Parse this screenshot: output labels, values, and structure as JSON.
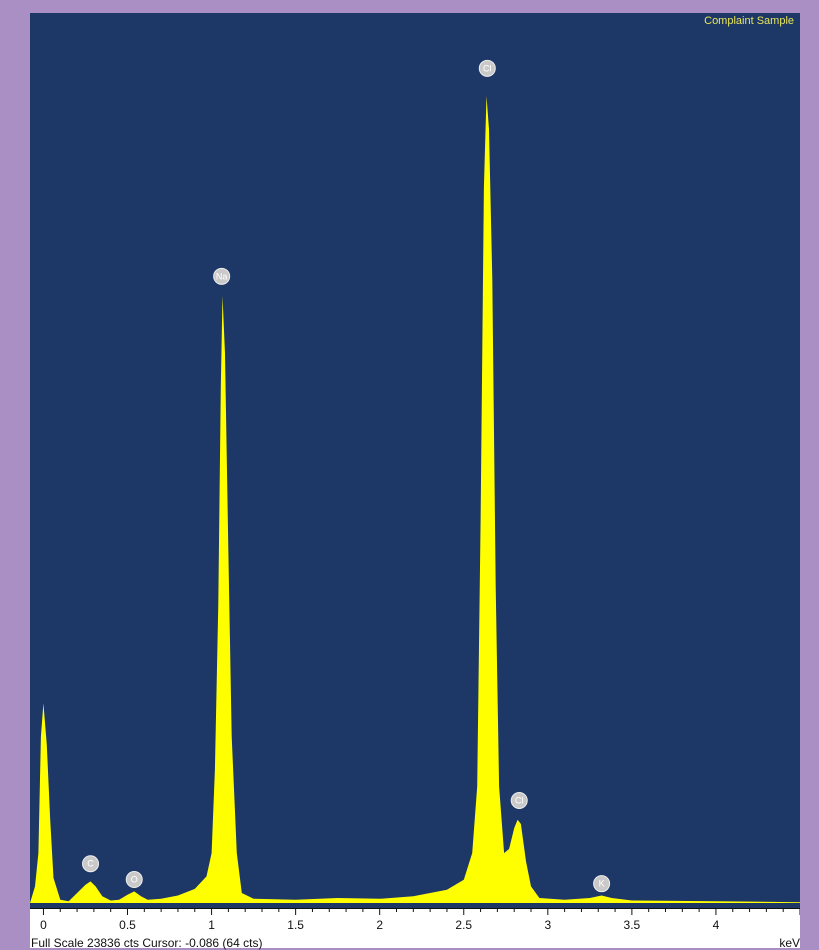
{
  "chart_data": {
    "type": "area",
    "title": "Complaint Sample",
    "xlabel": "keV",
    "xlim": [
      -0.08,
      4.5
    ],
    "ylim": [
      0,
      1
    ],
    "x_ticks": [
      0,
      0.5,
      1,
      1.5,
      2,
      2.5,
      3,
      3.5,
      4
    ],
    "x_tick_labels": [
      "0",
      "0.5",
      "1",
      "1.5",
      "2",
      "2.5",
      "3",
      "3.5",
      "4"
    ],
    "status_text": "Full Scale 23836 cts Cursor: -0.086  (64 cts)",
    "unit": "keV",
    "colors": {
      "background": "#1d3766",
      "spectrum": "#ffff00",
      "peak_marker": "#c9c9c9",
      "frame": "#a98fc4"
    },
    "peak_labels": [
      {
        "label": "C",
        "x": 0.28,
        "y": 0.034
      },
      {
        "label": "O",
        "x": 0.54,
        "y": 0.015
      },
      {
        "label": "Na",
        "x": 1.06,
        "y": 0.74
      },
      {
        "label": "Cl",
        "x": 2.64,
        "y": 0.99
      },
      {
        "label": "Cl",
        "x": 2.83,
        "y": 0.11
      },
      {
        "label": "K",
        "x": 3.32,
        "y": 0.01
      }
    ],
    "spectrum": [
      [
        -0.08,
        0.0
      ],
      [
        -0.05,
        0.02
      ],
      [
        -0.03,
        0.06
      ],
      [
        -0.015,
        0.2
      ],
      [
        0.0,
        0.24
      ],
      [
        0.02,
        0.19
      ],
      [
        0.04,
        0.1
      ],
      [
        0.06,
        0.03
      ],
      [
        0.1,
        0.004
      ],
      [
        0.15,
        0.002
      ],
      [
        0.2,
        0.012
      ],
      [
        0.25,
        0.022
      ],
      [
        0.28,
        0.026
      ],
      [
        0.31,
        0.02
      ],
      [
        0.35,
        0.008
      ],
      [
        0.4,
        0.003
      ],
      [
        0.45,
        0.004
      ],
      [
        0.5,
        0.01
      ],
      [
        0.54,
        0.014
      ],
      [
        0.58,
        0.008
      ],
      [
        0.62,
        0.004
      ],
      [
        0.7,
        0.005
      ],
      [
        0.8,
        0.009
      ],
      [
        0.9,
        0.017
      ],
      [
        0.97,
        0.032
      ],
      [
        1.0,
        0.06
      ],
      [
        1.02,
        0.16
      ],
      [
        1.04,
        0.36
      ],
      [
        1.055,
        0.62
      ],
      [
        1.065,
        0.73
      ],
      [
        1.08,
        0.66
      ],
      [
        1.1,
        0.42
      ],
      [
        1.12,
        0.2
      ],
      [
        1.15,
        0.06
      ],
      [
        1.18,
        0.012
      ],
      [
        1.25,
        0.005
      ],
      [
        1.5,
        0.004
      ],
      [
        1.75,
        0.006
      ],
      [
        2.0,
        0.005
      ],
      [
        2.2,
        0.008
      ],
      [
        2.4,
        0.016
      ],
      [
        2.5,
        0.028
      ],
      [
        2.55,
        0.06
      ],
      [
        2.58,
        0.14
      ],
      [
        2.6,
        0.46
      ],
      [
        2.62,
        0.86
      ],
      [
        2.635,
        0.97
      ],
      [
        2.65,
        0.93
      ],
      [
        2.67,
        0.75
      ],
      [
        2.69,
        0.38
      ],
      [
        2.71,
        0.14
      ],
      [
        2.74,
        0.06
      ],
      [
        2.77,
        0.065
      ],
      [
        2.8,
        0.09
      ],
      [
        2.82,
        0.1
      ],
      [
        2.84,
        0.095
      ],
      [
        2.87,
        0.05
      ],
      [
        2.9,
        0.02
      ],
      [
        2.95,
        0.006
      ],
      [
        3.1,
        0.004
      ],
      [
        3.25,
        0.006
      ],
      [
        3.32,
        0.009
      ],
      [
        3.38,
        0.006
      ],
      [
        3.5,
        0.003
      ],
      [
        4.0,
        0.002
      ],
      [
        4.5,
        0.001
      ]
    ]
  }
}
